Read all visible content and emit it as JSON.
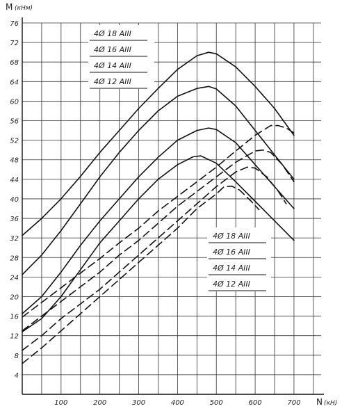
{
  "chart_data": {
    "type": "line",
    "xlabel": "N",
    "xunit": "(кН)",
    "ylabel": "M",
    "yunit": "(кНм)",
    "xlim": [
      0,
      770
    ],
    "ylim": [
      0,
      76
    ],
    "x_ticks": [
      100,
      200,
      300,
      400,
      500,
      600,
      700
    ],
    "y_ticks": [
      4,
      8,
      12,
      16,
      20,
      24,
      28,
      32,
      36,
      40,
      44,
      48,
      52,
      56,
      60,
      64,
      68,
      72,
      76
    ],
    "grid": true,
    "legends": [
      {
        "style": "solid",
        "entries": [
          "4Ø 18 АIII",
          "4Ø 16 АIII",
          "4Ø 14 АIII",
          "4Ø 12 АIII"
        ],
        "position": "top-left"
      },
      {
        "style": "dashed",
        "entries": [
          "4Ø 18 АIII",
          "4Ø 16 АIII",
          "4Ø 14 АIII",
          "4Ø 12 АIII"
        ],
        "position": "bottom-right"
      }
    ],
    "series": [
      {
        "style": "solid",
        "group": 0,
        "points": [
          [
            0,
            32.5
          ],
          [
            50,
            36
          ],
          [
            100,
            40
          ],
          [
            150,
            44.6
          ],
          [
            200,
            49.5
          ],
          [
            250,
            54
          ],
          [
            300,
            58.5
          ],
          [
            350,
            62.6
          ],
          [
            400,
            66.5
          ],
          [
            450,
            69.3
          ],
          [
            480,
            70
          ],
          [
            500,
            69.7
          ],
          [
            550,
            67
          ],
          [
            600,
            63
          ],
          [
            650,
            58.5
          ],
          [
            700,
            53
          ]
        ]
      },
      {
        "style": "solid",
        "group": 0,
        "points": [
          [
            0,
            24.5
          ],
          [
            50,
            28.5
          ],
          [
            100,
            33.5
          ],
          [
            150,
            39
          ],
          [
            200,
            44.5
          ],
          [
            250,
            49.5
          ],
          [
            300,
            54
          ],
          [
            350,
            58
          ],
          [
            400,
            61
          ],
          [
            450,
            62.6
          ],
          [
            480,
            63
          ],
          [
            500,
            62.5
          ],
          [
            550,
            59
          ],
          [
            600,
            54
          ],
          [
            650,
            49
          ],
          [
            700,
            44
          ]
        ]
      },
      {
        "style": "solid",
        "group": 0,
        "points": [
          [
            0,
            16.5
          ],
          [
            50,
            20
          ],
          [
            100,
            25
          ],
          [
            150,
            30.5
          ],
          [
            200,
            35.5
          ],
          [
            250,
            40
          ],
          [
            300,
            44.5
          ],
          [
            350,
            48.5
          ],
          [
            400,
            52
          ],
          [
            450,
            54
          ],
          [
            480,
            54.5
          ],
          [
            500,
            54.2
          ],
          [
            550,
            51.5
          ],
          [
            600,
            47
          ],
          [
            650,
            42.5
          ],
          [
            700,
            38
          ]
        ]
      },
      {
        "style": "solid",
        "group": 0,
        "points": [
          [
            0,
            12.8
          ],
          [
            50,
            15.5
          ],
          [
            100,
            20
          ],
          [
            150,
            25.5
          ],
          [
            200,
            31
          ],
          [
            250,
            35.5
          ],
          [
            300,
            40
          ],
          [
            350,
            44
          ],
          [
            400,
            47
          ],
          [
            440,
            48.6
          ],
          [
            460,
            48.8
          ],
          [
            500,
            47.3
          ],
          [
            550,
            43.5
          ],
          [
            600,
            39.5
          ],
          [
            650,
            35.5
          ],
          [
            700,
            31.5
          ]
        ]
      },
      {
        "style": "dashed",
        "group": 1,
        "points": [
          [
            0,
            15.8
          ],
          [
            50,
            18.8
          ],
          [
            100,
            21.8
          ],
          [
            150,
            24.8
          ],
          [
            200,
            27.8
          ],
          [
            250,
            31
          ],
          [
            300,
            34
          ],
          [
            350,
            37.5
          ],
          [
            400,
            40.5
          ],
          [
            450,
            43.5
          ],
          [
            500,
            46.5
          ],
          [
            550,
            49.8
          ],
          [
            600,
            53
          ],
          [
            640,
            55
          ],
          [
            660,
            55
          ],
          [
            680,
            54.5
          ],
          [
            700,
            53.5
          ]
        ]
      },
      {
        "style": "dashed",
        "group": 1,
        "points": [
          [
            0,
            13
          ],
          [
            50,
            16
          ],
          [
            100,
            19
          ],
          [
            150,
            22
          ],
          [
            200,
            25
          ],
          [
            250,
            28.5
          ],
          [
            300,
            31.5
          ],
          [
            350,
            35
          ],
          [
            400,
            38.5
          ],
          [
            450,
            41.5
          ],
          [
            500,
            44.5
          ],
          [
            550,
            47.5
          ],
          [
            600,
            49.8
          ],
          [
            620,
            50
          ],
          [
            640,
            49.5
          ],
          [
            670,
            47
          ],
          [
            700,
            43.5
          ]
        ]
      },
      {
        "style": "dashed",
        "group": 1,
        "points": [
          [
            0,
            9
          ],
          [
            50,
            12
          ],
          [
            100,
            15.5
          ],
          [
            150,
            18.5
          ],
          [
            200,
            21.5
          ],
          [
            250,
            25
          ],
          [
            300,
            28.5
          ],
          [
            350,
            32
          ],
          [
            400,
            35.5
          ],
          [
            450,
            39
          ],
          [
            500,
            42.5
          ],
          [
            550,
            45.5
          ],
          [
            580,
            46.5
          ],
          [
            600,
            46.3
          ],
          [
            630,
            44.5
          ],
          [
            660,
            41.5
          ],
          [
            680,
            39
          ]
        ]
      },
      {
        "style": "dashed",
        "group": 1,
        "points": [
          [
            0,
            6.3
          ],
          [
            50,
            9.5
          ],
          [
            100,
            13
          ],
          [
            150,
            16.5
          ],
          [
            200,
            20
          ],
          [
            250,
            23.5
          ],
          [
            300,
            27
          ],
          [
            350,
            30.5
          ],
          [
            400,
            34
          ],
          [
            450,
            38
          ],
          [
            500,
            41
          ],
          [
            520,
            42.5
          ],
          [
            540,
            42.6
          ],
          [
            560,
            41.8
          ],
          [
            590,
            39.5
          ],
          [
            610,
            37.8
          ]
        ]
      }
    ]
  }
}
